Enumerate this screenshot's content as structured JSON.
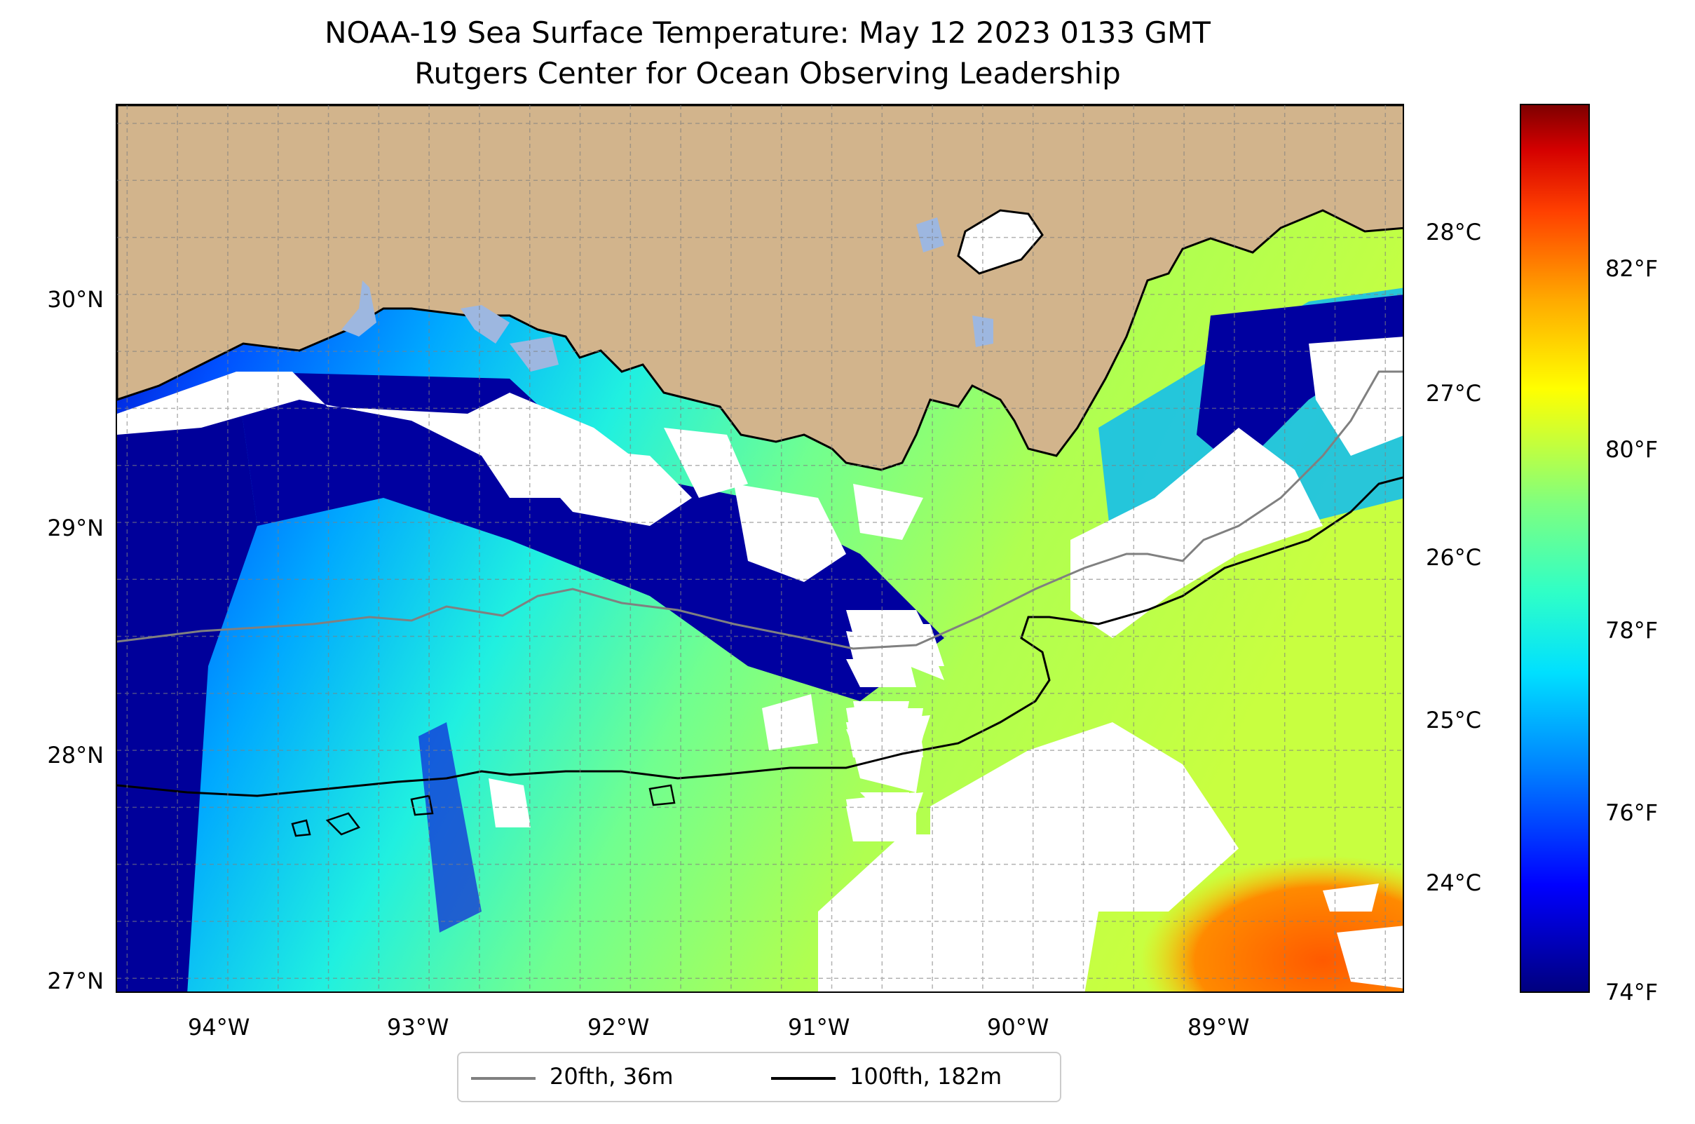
{
  "title": {
    "line1": "NOAA-19 Sea Surface Temperature: May 12 2023 0133 GMT",
    "line2": "Rutgers Center for Ocean Observing Leadership"
  },
  "map": {
    "lon_range": [
      -94.55,
      -88.15
    ],
    "lat_range": [
      26.93,
      30.83
    ],
    "lat_ticks": [
      {
        "value": 30,
        "label": "30°N"
      },
      {
        "value": 29,
        "label": "29°N"
      },
      {
        "value": 28,
        "label": "28°N"
      },
      {
        "value": 27,
        "label": "27°N"
      }
    ],
    "lon_ticks": [
      {
        "value": -94,
        "label": "94°W"
      },
      {
        "value": -93,
        "label": "93°W"
      },
      {
        "value": -92,
        "label": "92°W"
      },
      {
        "value": -91,
        "label": "91°W"
      },
      {
        "value": -90,
        "label": "90°W"
      },
      {
        "value": -89,
        "label": "89°W"
      }
    ],
    "gridlines": true,
    "colors": {
      "land": "#d2b48c",
      "lake": "#9db7e0",
      "no_data": "#ffffff",
      "isobath_20fth": "#808080",
      "isobath_100fth": "#000000"
    }
  },
  "colorbar": {
    "colormap": "jet",
    "celsius_ticks": [
      {
        "value": 28,
        "label": "28°C"
      },
      {
        "value": 27,
        "label": "27°C"
      },
      {
        "value": 26,
        "label": "26°C"
      },
      {
        "value": 25,
        "label": "25°C"
      },
      {
        "value": 24,
        "label": "24°C"
      }
    ],
    "fahrenheit_ticks": [
      {
        "value": 82,
        "label": "82°F"
      },
      {
        "value": 80,
        "label": "80°F"
      },
      {
        "value": 78,
        "label": "78°F"
      },
      {
        "value": 76,
        "label": "76°F"
      },
      {
        "value": 74,
        "label": "74°F"
      }
    ],
    "range_f": [
      73.9,
      83.8
    ]
  },
  "legend": {
    "entries": [
      {
        "label": "20fth, 36m",
        "color": "#808080"
      },
      {
        "label": "100fth, 182m",
        "color": "#000000"
      }
    ]
  }
}
